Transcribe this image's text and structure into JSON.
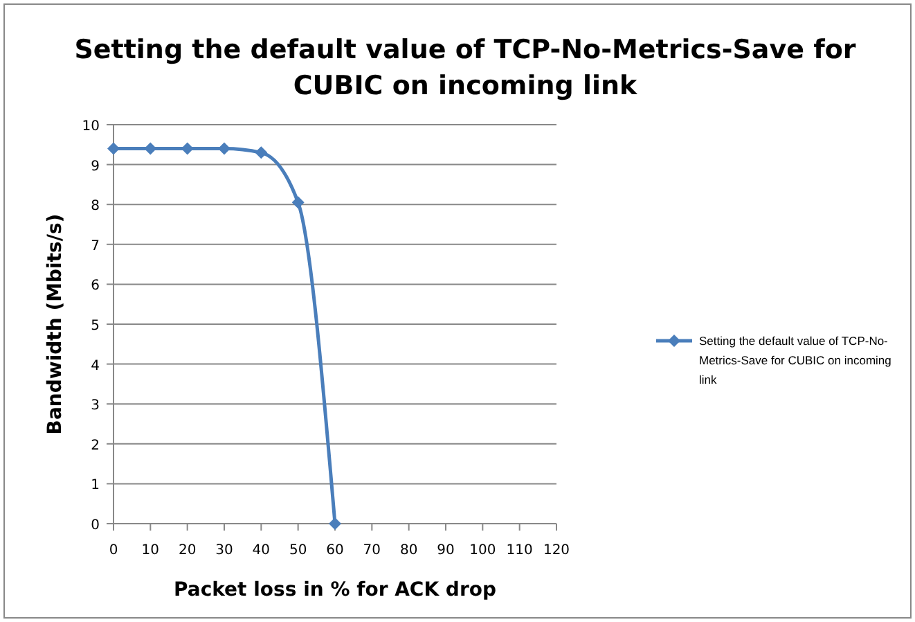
{
  "chart_data": {
    "type": "line",
    "title": "Setting the default value of TCP-No-Metrics-Save for CUBIC on incoming link",
    "xlabel": "Packet loss in % for ACK drop",
    "ylabel": "Bandwidth (Mbits/s)",
    "x": [
      0,
      10,
      20,
      30,
      40,
      50,
      60
    ],
    "series": [
      {
        "name": "Setting the default value of TCP-No-Metrics-Save for CUBIC on incoming link",
        "color": "#4a7ebb",
        "values": [
          9.4,
          9.4,
          9.4,
          9.4,
          9.3,
          8.05,
          0
        ]
      }
    ],
    "xlim": [
      0,
      120
    ],
    "xticks": [
      0,
      10,
      20,
      30,
      40,
      50,
      60,
      70,
      80,
      90,
      100,
      110,
      120
    ],
    "ylim": [
      0,
      10
    ],
    "yticks": [
      0,
      1,
      2,
      3,
      4,
      5,
      6,
      7,
      8,
      9,
      10
    ],
    "grid": "y",
    "legend": "right",
    "marker": "diamond",
    "line_style": "solid"
  }
}
